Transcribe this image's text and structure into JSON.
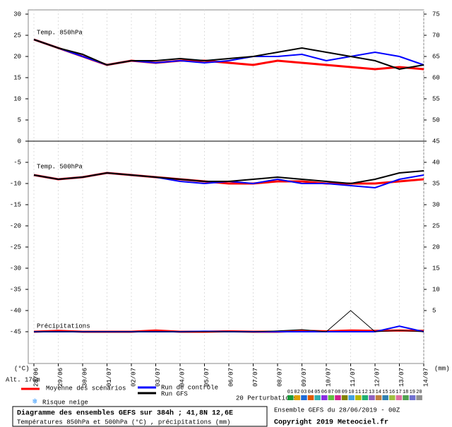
{
  "chart_data": {
    "type": "line",
    "title": "Diagramme des ensembles GEFS sur 384h ; 41,8N 12,6E",
    "subtitle": "Températures 850hPa et 500hPa (°C) , précipitations (mm)",
    "run_info": "Ensemble GEFS du 28/06/2019 - 00Z",
    "copyright": "Copyright 2019 Meteociel.fr",
    "altitude": "Alt. 176m",
    "y_label": "(°C)",
    "y2_label": "(mm)",
    "panel_labels": [
      "Temp. 850hPa",
      "Temp. 500hPa",
      "Précipitations"
    ],
    "snow_label": "Risque neige",
    "perturbations": {
      "label": "20 Perturbations",
      "items": [
        {
          "label": "01",
          "color": "#1a9a3a"
        },
        {
          "label": "02",
          "color": "#e0a000"
        },
        {
          "label": "03",
          "color": "#1e6ad8"
        },
        {
          "label": "04",
          "color": "#e05a00"
        },
        {
          "label": "05",
          "color": "#30b0b0"
        },
        {
          "label": "06",
          "color": "#8a2be2"
        },
        {
          "label": "07",
          "color": "#60c040"
        },
        {
          "label": "08",
          "color": "#d02090"
        },
        {
          "label": "09",
          "color": "#808000"
        },
        {
          "label": "10",
          "color": "#40a0e0"
        },
        {
          "label": "11",
          "color": "#b8b800"
        },
        {
          "label": "12",
          "color": "#20b070"
        },
        {
          "label": "13",
          "color": "#9060c0"
        },
        {
          "label": "14",
          "color": "#c08040"
        },
        {
          "label": "15",
          "color": "#3080b0"
        },
        {
          "label": "16",
          "color": "#a0c040"
        },
        {
          "label": "17",
          "color": "#e070a0"
        },
        {
          "label": "18",
          "color": "#50a050"
        },
        {
          "label": "19",
          "color": "#7070d0"
        },
        {
          "label": "20",
          "color": "#909090"
        }
      ]
    },
    "categories": [
      "28/06",
      "29/06",
      "30/06",
      "01/07",
      "02/07",
      "03/07",
      "04/07",
      "05/07",
      "06/07",
      "07/07",
      "08/07",
      "09/07",
      "10/07",
      "11/07",
      "12/07",
      "13/07",
      "14/07"
    ],
    "ylim": [
      -52.5,
      31
    ],
    "yticks": [
      30,
      25,
      20,
      15,
      10,
      5,
      0,
      -5,
      -10,
      -15,
      -20,
      -25,
      -30,
      -35,
      -40,
      -45
    ],
    "y2lim": [
      -7.5,
      76
    ],
    "y2ticks": [
      75,
      70,
      65,
      60,
      55,
      50,
      45,
      40,
      35,
      30,
      25,
      20,
      15,
      10,
      5
    ],
    "series": [
      {
        "name": "Moyenne des scénarios",
        "color": "#ff0000",
        "width": 3,
        "values": [
          24,
          22,
          20,
          18,
          19,
          18.5,
          19,
          19,
          18.5,
          18,
          19,
          18.5,
          18,
          17.5,
          17,
          17.5,
          17
        ]
      },
      {
        "name": "Run de contrôle",
        "color": "#0000ff",
        "width": 2,
        "values": [
          24,
          22,
          20,
          18,
          19,
          18.5,
          19,
          18.5,
          19,
          20,
          20,
          20.5,
          19,
          20,
          21,
          20,
          18
        ]
      },
      {
        "name": "Run GFS",
        "color": "#000000",
        "width": 2,
        "values": [
          24,
          22,
          20.5,
          18,
          19,
          19,
          19.5,
          19,
          19.5,
          20,
          21,
          22,
          21,
          20,
          19,
          17,
          18
        ]
      },
      {
        "name": "Moyenne des scénarios",
        "color": "#ff0000",
        "width": 3,
        "values": [
          -8,
          -9,
          -8.5,
          -7.5,
          -8,
          -8.5,
          -9,
          -9.5,
          -10,
          -10,
          -9.5,
          -9.5,
          -10,
          -10,
          -10,
          -9.5,
          -9
        ]
      },
      {
        "name": "Run de contrôle",
        "color": "#0000ff",
        "width": 2,
        "values": [
          -8,
          -9,
          -8.5,
          -7.5,
          -8,
          -8.5,
          -9.5,
          -10,
          -9.5,
          -10,
          -9,
          -10,
          -10,
          -10.5,
          -11,
          -9,
          -8
        ]
      },
      {
        "name": "Run GFS",
        "color": "#000000",
        "width": 2,
        "values": [
          -8,
          -9,
          -8.5,
          -7.5,
          -8,
          -8.5,
          -9,
          -9.5,
          -9.5,
          -9,
          -8.5,
          -9,
          -9.5,
          -10,
          -9,
          -7.5,
          -7
        ]
      },
      {
        "name": "Moyenne des scénarios",
        "color": "#ff0000",
        "width": 3,
        "axis": "y2",
        "values": [
          0,
          0.2,
          0,
          0,
          0,
          0.3,
          0,
          0,
          0.1,
          0,
          0,
          0.2,
          0.1,
          0.3,
          0.2,
          0.3,
          0.2
        ]
      },
      {
        "name": "Run de contrôle",
        "color": "#0000ff",
        "width": 2,
        "axis": "y2",
        "values": [
          0,
          0,
          0,
          0,
          0,
          0,
          0,
          0.1,
          0,
          0,
          0,
          0,
          0,
          0,
          0,
          1.3,
          0
        ]
      },
      {
        "name": "Run GFS",
        "color": "#000000",
        "width": 1,
        "axis": "y2",
        "values": [
          0,
          0,
          0,
          0,
          0,
          0,
          0,
          0,
          0,
          0,
          0.2,
          0.5,
          0,
          5,
          0,
          0.3,
          0
        ]
      }
    ]
  }
}
